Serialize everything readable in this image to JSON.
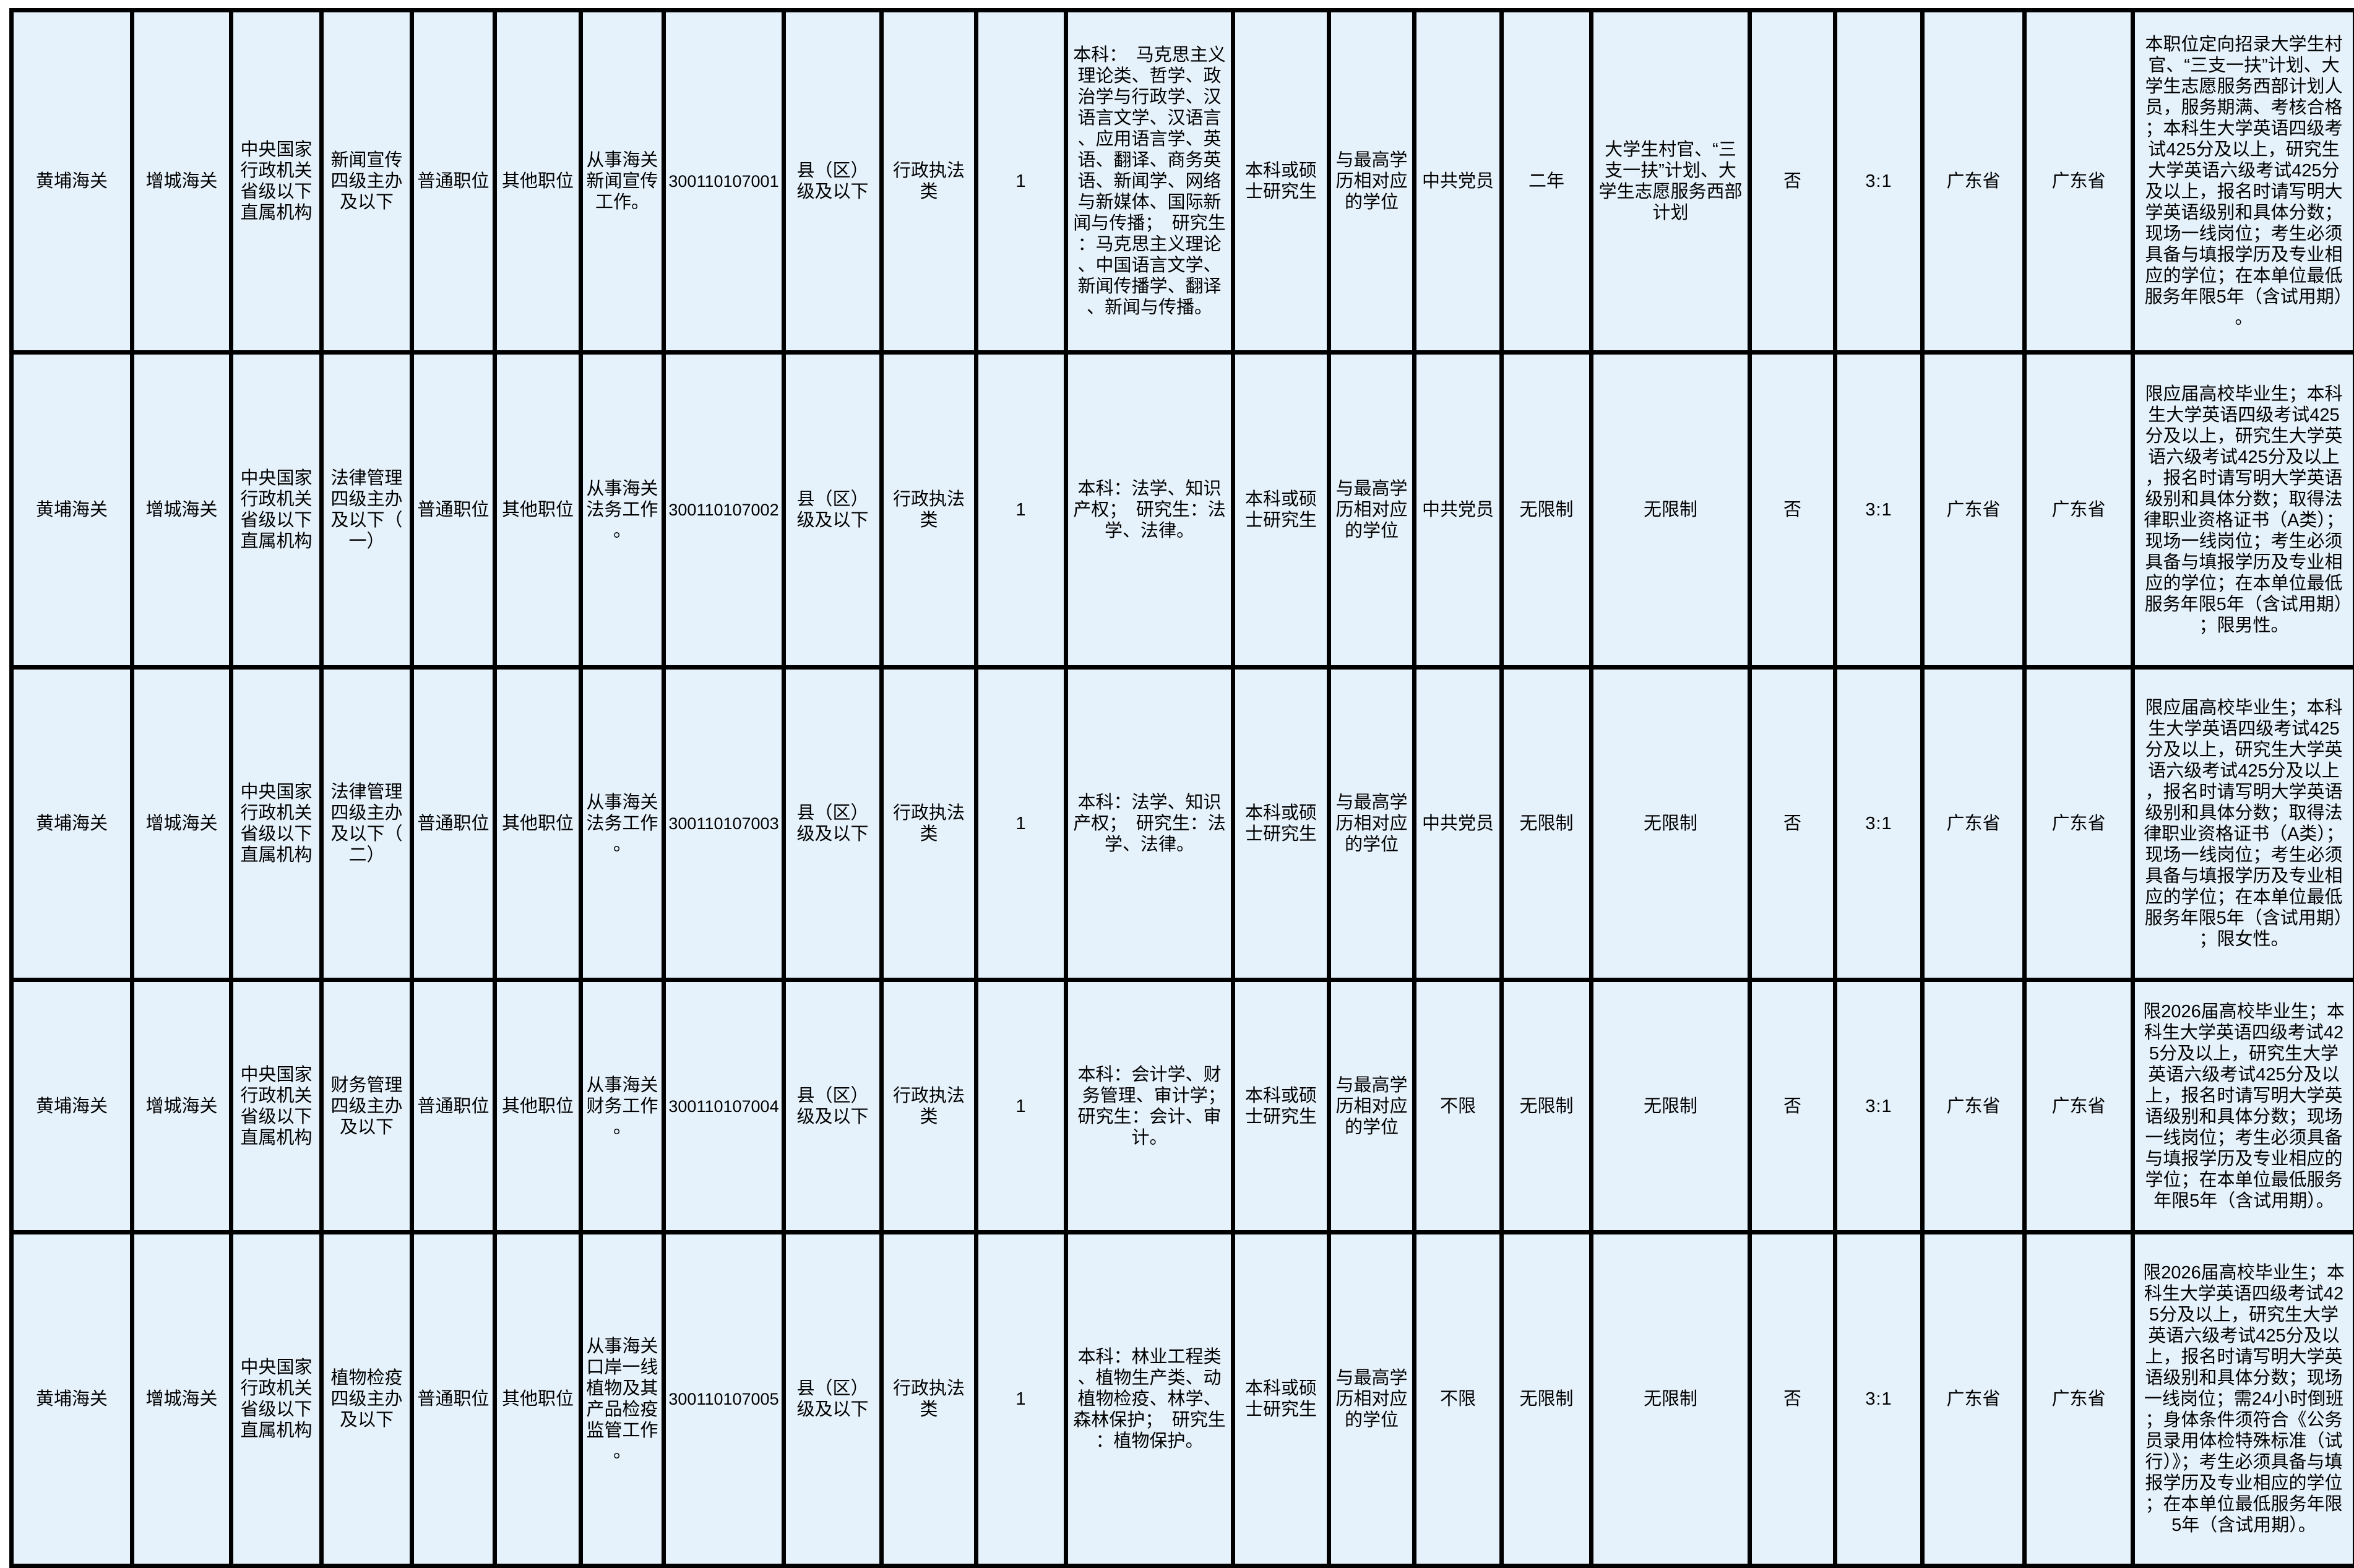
{
  "page": {
    "background": "#ffffff",
    "table_background": "#e6f2fb",
    "border_color": "#000000",
    "text_color": "#000000"
  },
  "rows": [
    {
      "department": "黄埔海关",
      "bureau": "增城海关",
      "org_type": "中央国家行政机关省级以下直属机构",
      "position_title": "新闻宣传四级主办及以下",
      "position_attr": "普通职位",
      "position_dist": "其他职位",
      "duty": "从事海关新闻宣传工作。",
      "position_code": "300110107001",
      "org_level": "县（区）级及以下",
      "exam_category": "行政执法类",
      "headcount": "1",
      "major": "本科：　马克思主义理论类、哲学、政治学与行政学、汉语言文学、汉语言、应用语言学、英语、翻译、商务英语、新闻学、网络与新媒体、国际新闻与传播；　研究生：马克思主义理论、中国语言文学、新闻传播学、翻译、新闻与传播。",
      "education": "本科或硕士研究生",
      "degree": "与最高学历相对应的学位",
      "political_status": "中共党员",
      "grassroots_years": "二年",
      "service_program": "大学生村官、“三支一扶”计划、大学生志愿服务西部计划",
      "professional_test": "否",
      "interview_ratio": "3:1",
      "work_location": "广东省",
      "household_location": "广东省",
      "remark": "本职位定向招录大学生村官、“三支一扶”计划、大学生志愿服务西部计划人员，服务期满、考核合格；本科生大学英语四级考试425分及以上，研究生大学英语六级考试425分及以上，报名时请写明大学英语级别和具体分数；现场一线岗位；考生必须具备与填报学历及专业相应的学位；在本单位最低服务年限5年（含试用期）。"
    },
    {
      "department": "黄埔海关",
      "bureau": "增城海关",
      "org_type": "中央国家行政机关省级以下直属机构",
      "position_title": "法律管理四级主办及以下（一）",
      "position_attr": "普通职位",
      "position_dist": "其他职位",
      "duty": "从事海关法务工作。",
      "position_code": "300110107002",
      "org_level": "县（区）级及以下",
      "exam_category": "行政执法类",
      "headcount": "1",
      "major": "本科：法学、知识产权；　研究生：法学、法律。",
      "education": "本科或硕士研究生",
      "degree": "与最高学历相对应的学位",
      "political_status": "中共党员",
      "grassroots_years": "无限制",
      "service_program": "无限制",
      "professional_test": "否",
      "interview_ratio": "3:1",
      "work_location": "广东省",
      "household_location": "广东省",
      "remark": "限应届高校毕业生；本科生大学英语四级考试425分及以上，研究生大学英语六级考试425分及以上，报名时请写明大学英语级别和具体分数；取得法律职业资格证书（A类）；现场一线岗位；考生必须具备与填报学历及专业相应的学位；在本单位最低服务年限5年（含试用期）；限男性。"
    },
    {
      "department": "黄埔海关",
      "bureau": "增城海关",
      "org_type": "中央国家行政机关省级以下直属机构",
      "position_title": "法律管理四级主办及以下（二）",
      "position_attr": "普通职位",
      "position_dist": "其他职位",
      "duty": "从事海关法务工作。",
      "position_code": "300110107003",
      "org_level": "县（区）级及以下",
      "exam_category": "行政执法类",
      "headcount": "1",
      "major": "本科：法学、知识产权；　研究生：法学、法律。",
      "education": "本科或硕士研究生",
      "degree": "与最高学历相对应的学位",
      "political_status": "中共党员",
      "grassroots_years": "无限制",
      "service_program": "无限制",
      "professional_test": "否",
      "interview_ratio": "3:1",
      "work_location": "广东省",
      "household_location": "广东省",
      "remark": "限应届高校毕业生；本科生大学英语四级考试425分及以上，研究生大学英语六级考试425分及以上，报名时请写明大学英语级别和具体分数；取得法律职业资格证书（A类）；现场一线岗位；考生必须具备与填报学历及专业相应的学位；在本单位最低服务年限5年（含试用期）；限女性。"
    },
    {
      "department": "黄埔海关",
      "bureau": "增城海关",
      "org_type": "中央国家行政机关省级以下直属机构",
      "position_title": "财务管理四级主办及以下",
      "position_attr": "普通职位",
      "position_dist": "其他职位",
      "duty": "从事海关财务工作。",
      "position_code": "300110107004",
      "org_level": "县（区）级及以下",
      "exam_category": "行政执法类",
      "headcount": "1",
      "major": "本科：会计学、财务管理、审计学；　研究生：会计、审计。",
      "education": "本科或硕士研究生",
      "degree": "与最高学历相对应的学位",
      "political_status": "不限",
      "grassroots_years": "无限制",
      "service_program": "无限制",
      "professional_test": "否",
      "interview_ratio": "3:1",
      "work_location": "广东省",
      "household_location": "广东省",
      "remark": "限2026届高校毕业生；本科生大学英语四级考试425分及以上，研究生大学英语六级考试425分及以上，报名时请写明大学英语级别和具体分数；现场一线岗位；考生必须具备与填报学历及专业相应的学位；在本单位最低服务年限5年（含试用期）。"
    },
    {
      "department": "黄埔海关",
      "bureau": "增城海关",
      "org_type": "中央国家行政机关省级以下直属机构",
      "position_title": "植物检疫四级主办及以下",
      "position_attr": "普通职位",
      "position_dist": "其他职位",
      "duty": "从事海关口岸一线植物及其产品检疫监管工作。",
      "position_code": "300110107005",
      "org_level": "县（区）级及以下",
      "exam_category": "行政执法类",
      "headcount": "1",
      "major": "本科：林业工程类、植物生产类、动植物检疫、林学、森林保护；　研究生：植物保护。",
      "education": "本科或硕士研究生",
      "degree": "与最高学历相对应的学位",
      "political_status": "不限",
      "grassroots_years": "无限制",
      "service_program": "无限制",
      "professional_test": "否",
      "interview_ratio": "3:1",
      "work_location": "广东省",
      "household_location": "广东省",
      "remark": "限2026届高校毕业生；本科生大学英语四级考试425分及以上，研究生大学英语六级考试425分及以上，报名时请写明大学英语级别和具体分数；现场一线岗位；需24小时倒班；身体条件须符合《公务员录用体检特殊标准（试行）》；考生必须具备与填报学历及专业相应的学位；在本单位最低服务年限5年（含试用期）。"
    }
  ]
}
